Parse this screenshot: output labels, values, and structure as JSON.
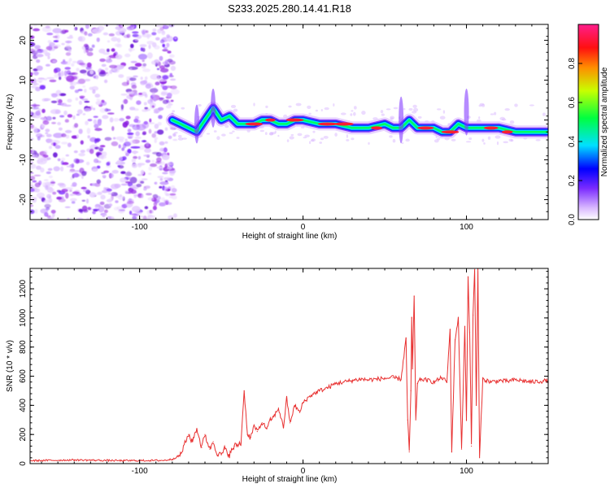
{
  "title": "S233.2025.280.14.41.R18",
  "colors": {
    "snr_line": "#e83030",
    "noise": "#9b30e6",
    "axis": "#000000"
  },
  "chart_data": [
    {
      "type": "heatmap",
      "xlabel": "Height of straight line (km)",
      "ylabel": "Frequency (Hz)",
      "xlim": [
        -167,
        150
      ],
      "ylim": [
        -25,
        24
      ],
      "xticks": [
        -100,
        0,
        100
      ],
      "xtick_labels": [
        "-100",
        "0",
        "100"
      ],
      "yticks": [
        -20,
        -10,
        0,
        10,
        20
      ],
      "ytick_labels": [
        "-20",
        "-10",
        "0",
        "10",
        "20"
      ],
      "noise_region_x": [
        -167,
        -80
      ],
      "ridge": {
        "x": [
          -80,
          -75,
          -70,
          -65,
          -60,
          -55,
          -50,
          -45,
          -40,
          -35,
          -30,
          -25,
          -20,
          -15,
          -10,
          -5,
          0,
          10,
          20,
          30,
          40,
          50,
          55,
          60,
          65,
          70,
          80,
          85,
          90,
          95,
          100,
          105,
          110,
          120,
          130,
          140,
          150
        ],
        "freq": [
          0,
          -1,
          -2,
          -3,
          0,
          3,
          0,
          1,
          -1,
          -1,
          -1,
          0,
          0,
          -1,
          -1,
          0,
          0,
          -1,
          -1,
          -2,
          -2,
          -1,
          -2,
          -2,
          0,
          -2,
          -2,
          -3,
          -3,
          -1,
          -2,
          -2,
          -2,
          -2,
          -3,
          -3,
          -3
        ]
      },
      "colorbar": {
        "label": "Normalized spectral amplitude",
        "range": [
          0,
          1
        ],
        "ticks": [
          0.0,
          0.2,
          0.4,
          0.6,
          0.8
        ],
        "tick_labels": [
          "0.0",
          "0.2",
          "0.4",
          "0.6",
          "0.8"
        ]
      }
    },
    {
      "type": "line",
      "xlabel": "Height of straight line (km)",
      "ylabel": "SNR (10 * v/v)",
      "xlim": [
        -167,
        150
      ],
      "ylim": [
        0,
        1340
      ],
      "xticks": [
        -100,
        0,
        100
      ],
      "xtick_labels": [
        "-100",
        "0",
        "100"
      ],
      "yticks": [
        0,
        200,
        400,
        600,
        800,
        1000,
        1200
      ],
      "ytick_labels": [
        "0",
        "200",
        "400",
        "600",
        "800",
        "1000",
        "1200"
      ],
      "series": [
        {
          "name": "SNR",
          "x": [
            -167,
            -140,
            -110,
            -85,
            -80,
            -75,
            -70,
            -68,
            -65,
            -62,
            -60,
            -57,
            -55,
            -52,
            -50,
            -48,
            -45,
            -42,
            -38,
            -36,
            -34,
            -32,
            -30,
            -28,
            -25,
            -22,
            -20,
            -18,
            -15,
            -12,
            -10,
            -8,
            -5,
            -2,
            0,
            5,
            10,
            15,
            20,
            25,
            30,
            35,
            40,
            45,
            50,
            55,
            60,
            63,
            64,
            65,
            66,
            66.5,
            67,
            68,
            69,
            70,
            72,
            75,
            80,
            85,
            88,
            90,
            91,
            93,
            95,
            97,
            99,
            100,
            101,
            102,
            103,
            104,
            105,
            106,
            107,
            108,
            110,
            115,
            120,
            125,
            130,
            140,
            150
          ],
          "y": [
            20,
            25,
            20,
            22,
            30,
            60,
            200,
            150,
            240,
            110,
            200,
            100,
            150,
            60,
            60,
            100,
            60,
            120,
            140,
            500,
            200,
            180,
            260,
            220,
            280,
            240,
            300,
            320,
            380,
            250,
            450,
            280,
            400,
            350,
            420,
            470,
            500,
            520,
            550,
            560,
            570,
            580,
            575,
            580,
            585,
            590,
            580,
            860,
            300,
            80,
            500,
            1000,
            650,
            1150,
            300,
            550,
            580,
            575,
            560,
            590,
            560,
            920,
            80,
            850,
            1000,
            100,
            940,
            300,
            1280,
            900,
            120,
            1020,
            1340,
            400,
            1340,
            40,
            580,
            560,
            570,
            565,
            575,
            560,
            570
          ]
        }
      ]
    }
  ]
}
